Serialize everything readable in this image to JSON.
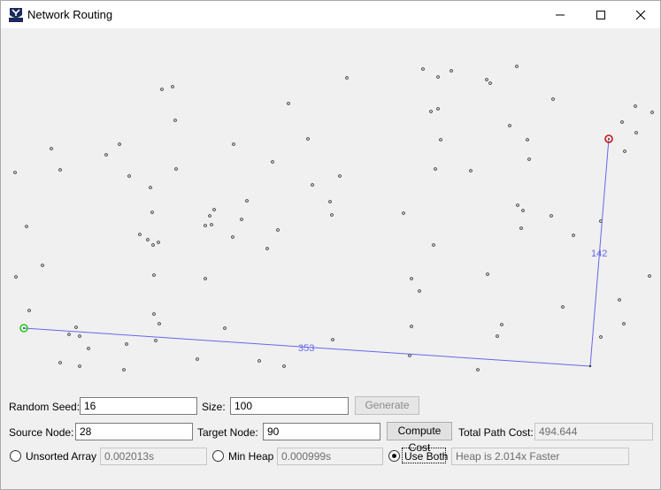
{
  "window": {
    "title": "Network Routing",
    "icon": "cs312-logo-icon",
    "controls": [
      "minimize-icon",
      "maximize-icon",
      "close-icon"
    ]
  },
  "graph": {
    "source_node_color": "#22cc22",
    "target_node_color": "#cc1111",
    "path_color": "#6666ee",
    "edge_costs": [
      "353",
      "142"
    ]
  },
  "controls": {
    "random_seed_label": "Random Seed:",
    "random_seed_value": "16",
    "size_label": "Size:",
    "size_value": "100",
    "generate_label": "Generate",
    "source_node_label": "Source Node:",
    "source_node_value": "28",
    "target_node_label": "Target Node:",
    "target_node_value": "90",
    "compute_cost_label": "Compute Cost",
    "total_path_cost_label": "Total Path Cost:",
    "total_path_cost_value": "494.644",
    "unsorted_array_label": "Unsorted Array",
    "unsorted_array_time": "0.002013s",
    "min_heap_label": "Min Heap",
    "min_heap_time": "0.000999s",
    "use_both_label": "Use Both",
    "use_both_result": "Heap is 2.014x Faster",
    "selected_mode": "use_both"
  }
}
